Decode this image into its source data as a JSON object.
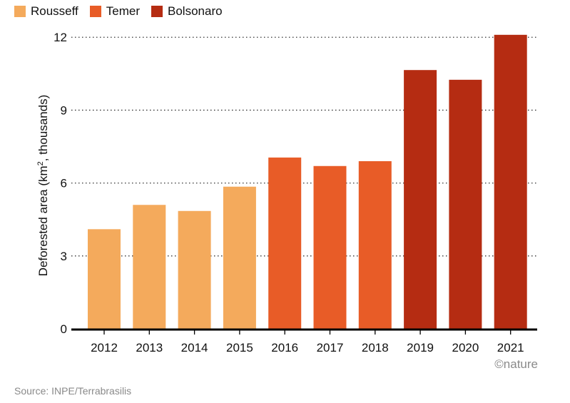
{
  "legend": [
    {
      "label": "Rousseff",
      "color": "#f4aa5c"
    },
    {
      "label": "Temer",
      "color": "#e85c27"
    },
    {
      "label": "Bolsonaro",
      "color": "#b52c12"
    }
  ],
  "watermark": "©nature",
  "source": "Source: INPE/Terrabrasilis",
  "chart_data": {
    "type": "bar",
    "title": "",
    "xlabel": "",
    "ylabel": "Deforested area (km², thousands)",
    "ylabel_parts": {
      "before": "Deforested area (km",
      "sup": "2",
      "after": ", thousands)"
    },
    "ylim": [
      0,
      12.3
    ],
    "yticks": [
      0,
      3,
      6,
      9,
      12
    ],
    "grid": "dotted horizontal",
    "legend_position": "top-left",
    "categories": [
      "2012",
      "2013",
      "2014",
      "2015",
      "2016",
      "2017",
      "2018",
      "2019",
      "2020",
      "2021"
    ],
    "values": [
      4.1,
      5.1,
      4.85,
      5.85,
      7.05,
      6.7,
      6.9,
      10.65,
      10.25,
      12.1
    ],
    "groups": [
      "Rousseff",
      "Rousseff",
      "Rousseff",
      "Rousseff",
      "Temer",
      "Temer",
      "Temer",
      "Bolsonaro",
      "Bolsonaro",
      "Bolsonaro"
    ]
  }
}
